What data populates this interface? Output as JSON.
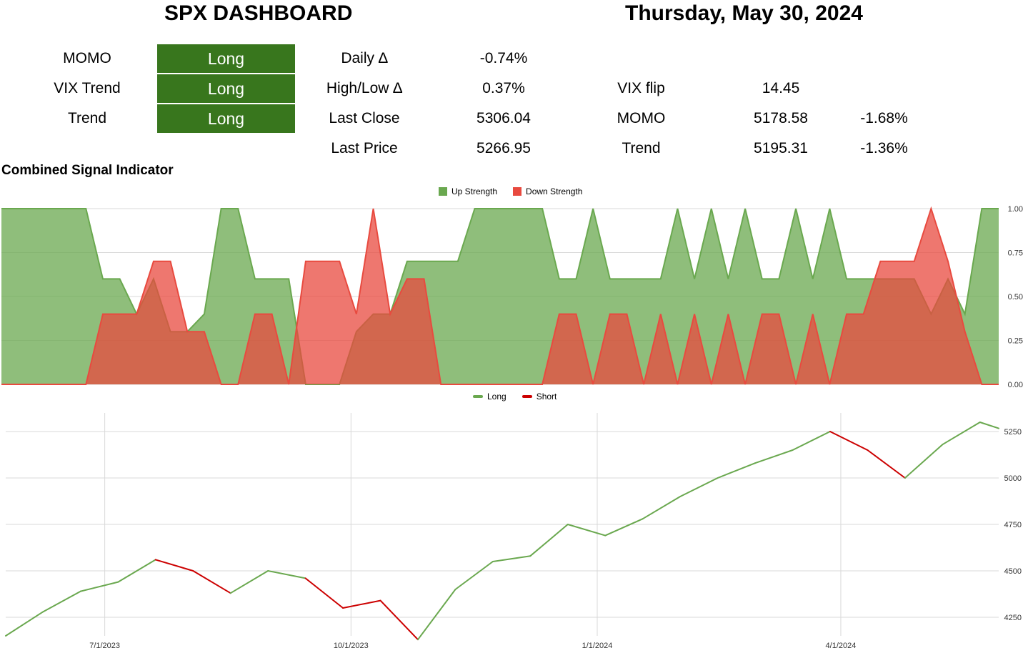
{
  "header": {
    "title": "SPX DASHBOARD",
    "date": "Thursday, May 30, 2024"
  },
  "signals": [
    {
      "label": "MOMO",
      "value": "Long"
    },
    {
      "label": "VIX Trend",
      "value": "Long"
    },
    {
      "label": "Trend",
      "value": "Long"
    }
  ],
  "colors": {
    "long_bg": "#38761d",
    "up": "#6aa84f",
    "down": "#e84a3f",
    "short_line": "#cc0000"
  },
  "stats": {
    "rows": [
      {
        "label": "Daily ∆",
        "value": "-0.74%"
      },
      {
        "label": "High/Low ∆",
        "value": "0.37%"
      },
      {
        "label": "Last Close",
        "value": "5306.04"
      },
      {
        "label": "Last Price",
        "value": "5266.95"
      }
    ]
  },
  "levels": {
    "rows": [
      {
        "label": "VIX flip",
        "value": "14.45",
        "pct": ""
      },
      {
        "label": "MOMO",
        "value": "5178.58",
        "pct": "-1.68%"
      },
      {
        "label": "Trend",
        "value": "5195.31",
        "pct": "-1.36%"
      }
    ]
  },
  "section_title": "Combined Signal Indicator",
  "chart_data": [
    {
      "type": "area",
      "title": "",
      "legend_position": "top",
      "ylim": [
        0,
        1
      ],
      "yticks": [
        "0.00",
        "0.25",
        "0.50",
        "0.75",
        "1.00"
      ],
      "grid": true,
      "x": [
        0,
        1,
        2,
        3,
        4,
        5,
        6,
        7,
        8,
        9,
        10,
        11,
        12,
        13,
        14,
        15,
        16,
        17,
        18,
        19,
        20,
        21,
        22,
        23,
        24,
        25,
        26,
        27,
        28,
        29,
        30,
        31,
        32,
        33,
        34,
        35,
        36,
        37,
        38,
        39,
        40,
        41,
        42,
        43,
        44,
        45,
        46,
        47,
        48,
        49,
        50,
        51,
        52,
        53,
        54,
        55,
        56,
        57,
        58,
        59
      ],
      "series": [
        {
          "name": "Up Strength",
          "color": "#6aa84f",
          "values": [
            1,
            1,
            1,
            1,
            1,
            1,
            0.6,
            0.6,
            0.4,
            0.6,
            0.3,
            0.3,
            0.4,
            1,
            1,
            0.6,
            0.6,
            0.6,
            0,
            0,
            0,
            0.3,
            0.4,
            0.4,
            0.7,
            0.7,
            0.7,
            0.7,
            1,
            1,
            1,
            1,
            1,
            0.6,
            0.6,
            1,
            0.6,
            0.6,
            0.6,
            0.6,
            1,
            0.6,
            1,
            0.6,
            1,
            0.6,
            0.6,
            1,
            0.6,
            1,
            0.6,
            0.6,
            0.6,
            0.6,
            0.6,
            0.4,
            0.6,
            0.4,
            1,
            1
          ]
        },
        {
          "name": "Down Strength",
          "color": "#e84a3f",
          "values": [
            0,
            0,
            0,
            0,
            0,
            0,
            0.4,
            0.4,
            0.4,
            0.7,
            0.7,
            0.3,
            0.3,
            0,
            0,
            0.4,
            0.4,
            0,
            0.7,
            0.7,
            0.7,
            0.4,
            1,
            0.4,
            0.6,
            0.6,
            0,
            0,
            0,
            0,
            0,
            0,
            0,
            0.4,
            0.4,
            0,
            0.4,
            0.4,
            0,
            0.4,
            0,
            0.4,
            0,
            0.4,
            0,
            0.4,
            0.4,
            0,
            0.4,
            0,
            0.4,
            0.4,
            0.7,
            0.7,
            0.7,
            1,
            0.7,
            0.3,
            0,
            0
          ]
        }
      ]
    },
    {
      "type": "line",
      "title": "",
      "legend_position": "top",
      "x_tick_labels": [
        "7/1/2023",
        "10/1/2023",
        "1/1/2024",
        "4/1/2024"
      ],
      "ylim": [
        4150,
        5350
      ],
      "yticks": [
        "4250",
        "4500",
        "4750",
        "5000",
        "5250"
      ],
      "grid": true,
      "x": [
        "5/25/2023",
        "6/8/2023",
        "6/22/2023",
        "7/6/2023",
        "7/20/2023",
        "8/3/2023",
        "8/17/2023",
        "8/31/2023",
        "9/14/2023",
        "9/28/2023",
        "10/12/2023",
        "10/26/2023",
        "11/9/2023",
        "11/23/2023",
        "12/7/2023",
        "12/21/2023",
        "1/4/2024",
        "1/18/2024",
        "2/1/2024",
        "2/15/2024",
        "2/29/2024",
        "3/14/2024",
        "3/28/2024",
        "4/11/2024",
        "4/25/2024",
        "5/9/2024",
        "5/23/2024",
        "5/30/2024"
      ],
      "values": [
        4150,
        4280,
        4390,
        4440,
        4560,
        4500,
        4380,
        4500,
        4460,
        4300,
        4340,
        4130,
        4400,
        4550,
        4580,
        4750,
        4690,
        4780,
        4900,
        5000,
        5080,
        5150,
        5250,
        5150,
        5000,
        5180,
        5300,
        5267
      ],
      "regime": [
        "Long",
        "Long",
        "Long",
        "Long",
        "Long",
        "Short",
        "Short",
        "Long",
        "Long",
        "Short",
        "Short",
        "Short",
        "Long",
        "Long",
        "Long",
        "Long",
        "Long",
        "Long",
        "Long",
        "Long",
        "Long",
        "Long",
        "Long",
        "Short",
        "Short",
        "Long",
        "Long",
        "Long"
      ],
      "series": [
        {
          "name": "Long",
          "color": "#6aa84f"
        },
        {
          "name": "Short",
          "color": "#cc0000"
        }
      ]
    }
  ]
}
